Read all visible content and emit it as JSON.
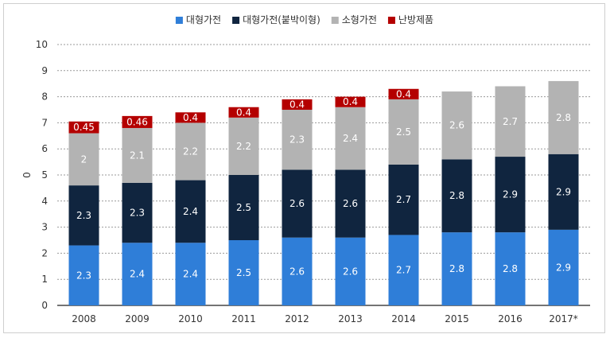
{
  "chart_data": {
    "type": "bar",
    "stacked": true,
    "categories": [
      "2008",
      "2009",
      "2010",
      "2011",
      "2012",
      "2013",
      "2014",
      "2015",
      "2016",
      "2017*"
    ],
    "series": [
      {
        "name": "대형가전",
        "color": "#2f7ed8",
        "values": [
          2.3,
          2.4,
          2.4,
          2.5,
          2.6,
          2.6,
          2.7,
          2.8,
          2.8,
          2.9
        ]
      },
      {
        "name": "대형가전(붙박이형)",
        "color": "#10253f",
        "values": [
          2.3,
          2.3,
          2.4,
          2.5,
          2.6,
          2.6,
          2.7,
          2.8,
          2.9,
          2.9
        ]
      },
      {
        "name": "소형가전",
        "color": "#b3b3b3",
        "values": [
          2,
          2.1,
          2.2,
          2.2,
          2.3,
          2.4,
          2.5,
          2.6,
          2.7,
          2.8
        ]
      },
      {
        "name": "난방제품",
        "color": "#b40000",
        "values": [
          0.45,
          0.46,
          0.4,
          0.4,
          0.4,
          0.4,
          0.4,
          null,
          null,
          null
        ]
      }
    ],
    "ylabel": "0",
    "ylim": [
      0,
      10
    ],
    "yticks": [
      "0",
      "1",
      "2",
      "3",
      "4",
      "5",
      "6",
      "7",
      "8",
      "9",
      "10"
    ],
    "grid": true,
    "legend": "top-center"
  }
}
